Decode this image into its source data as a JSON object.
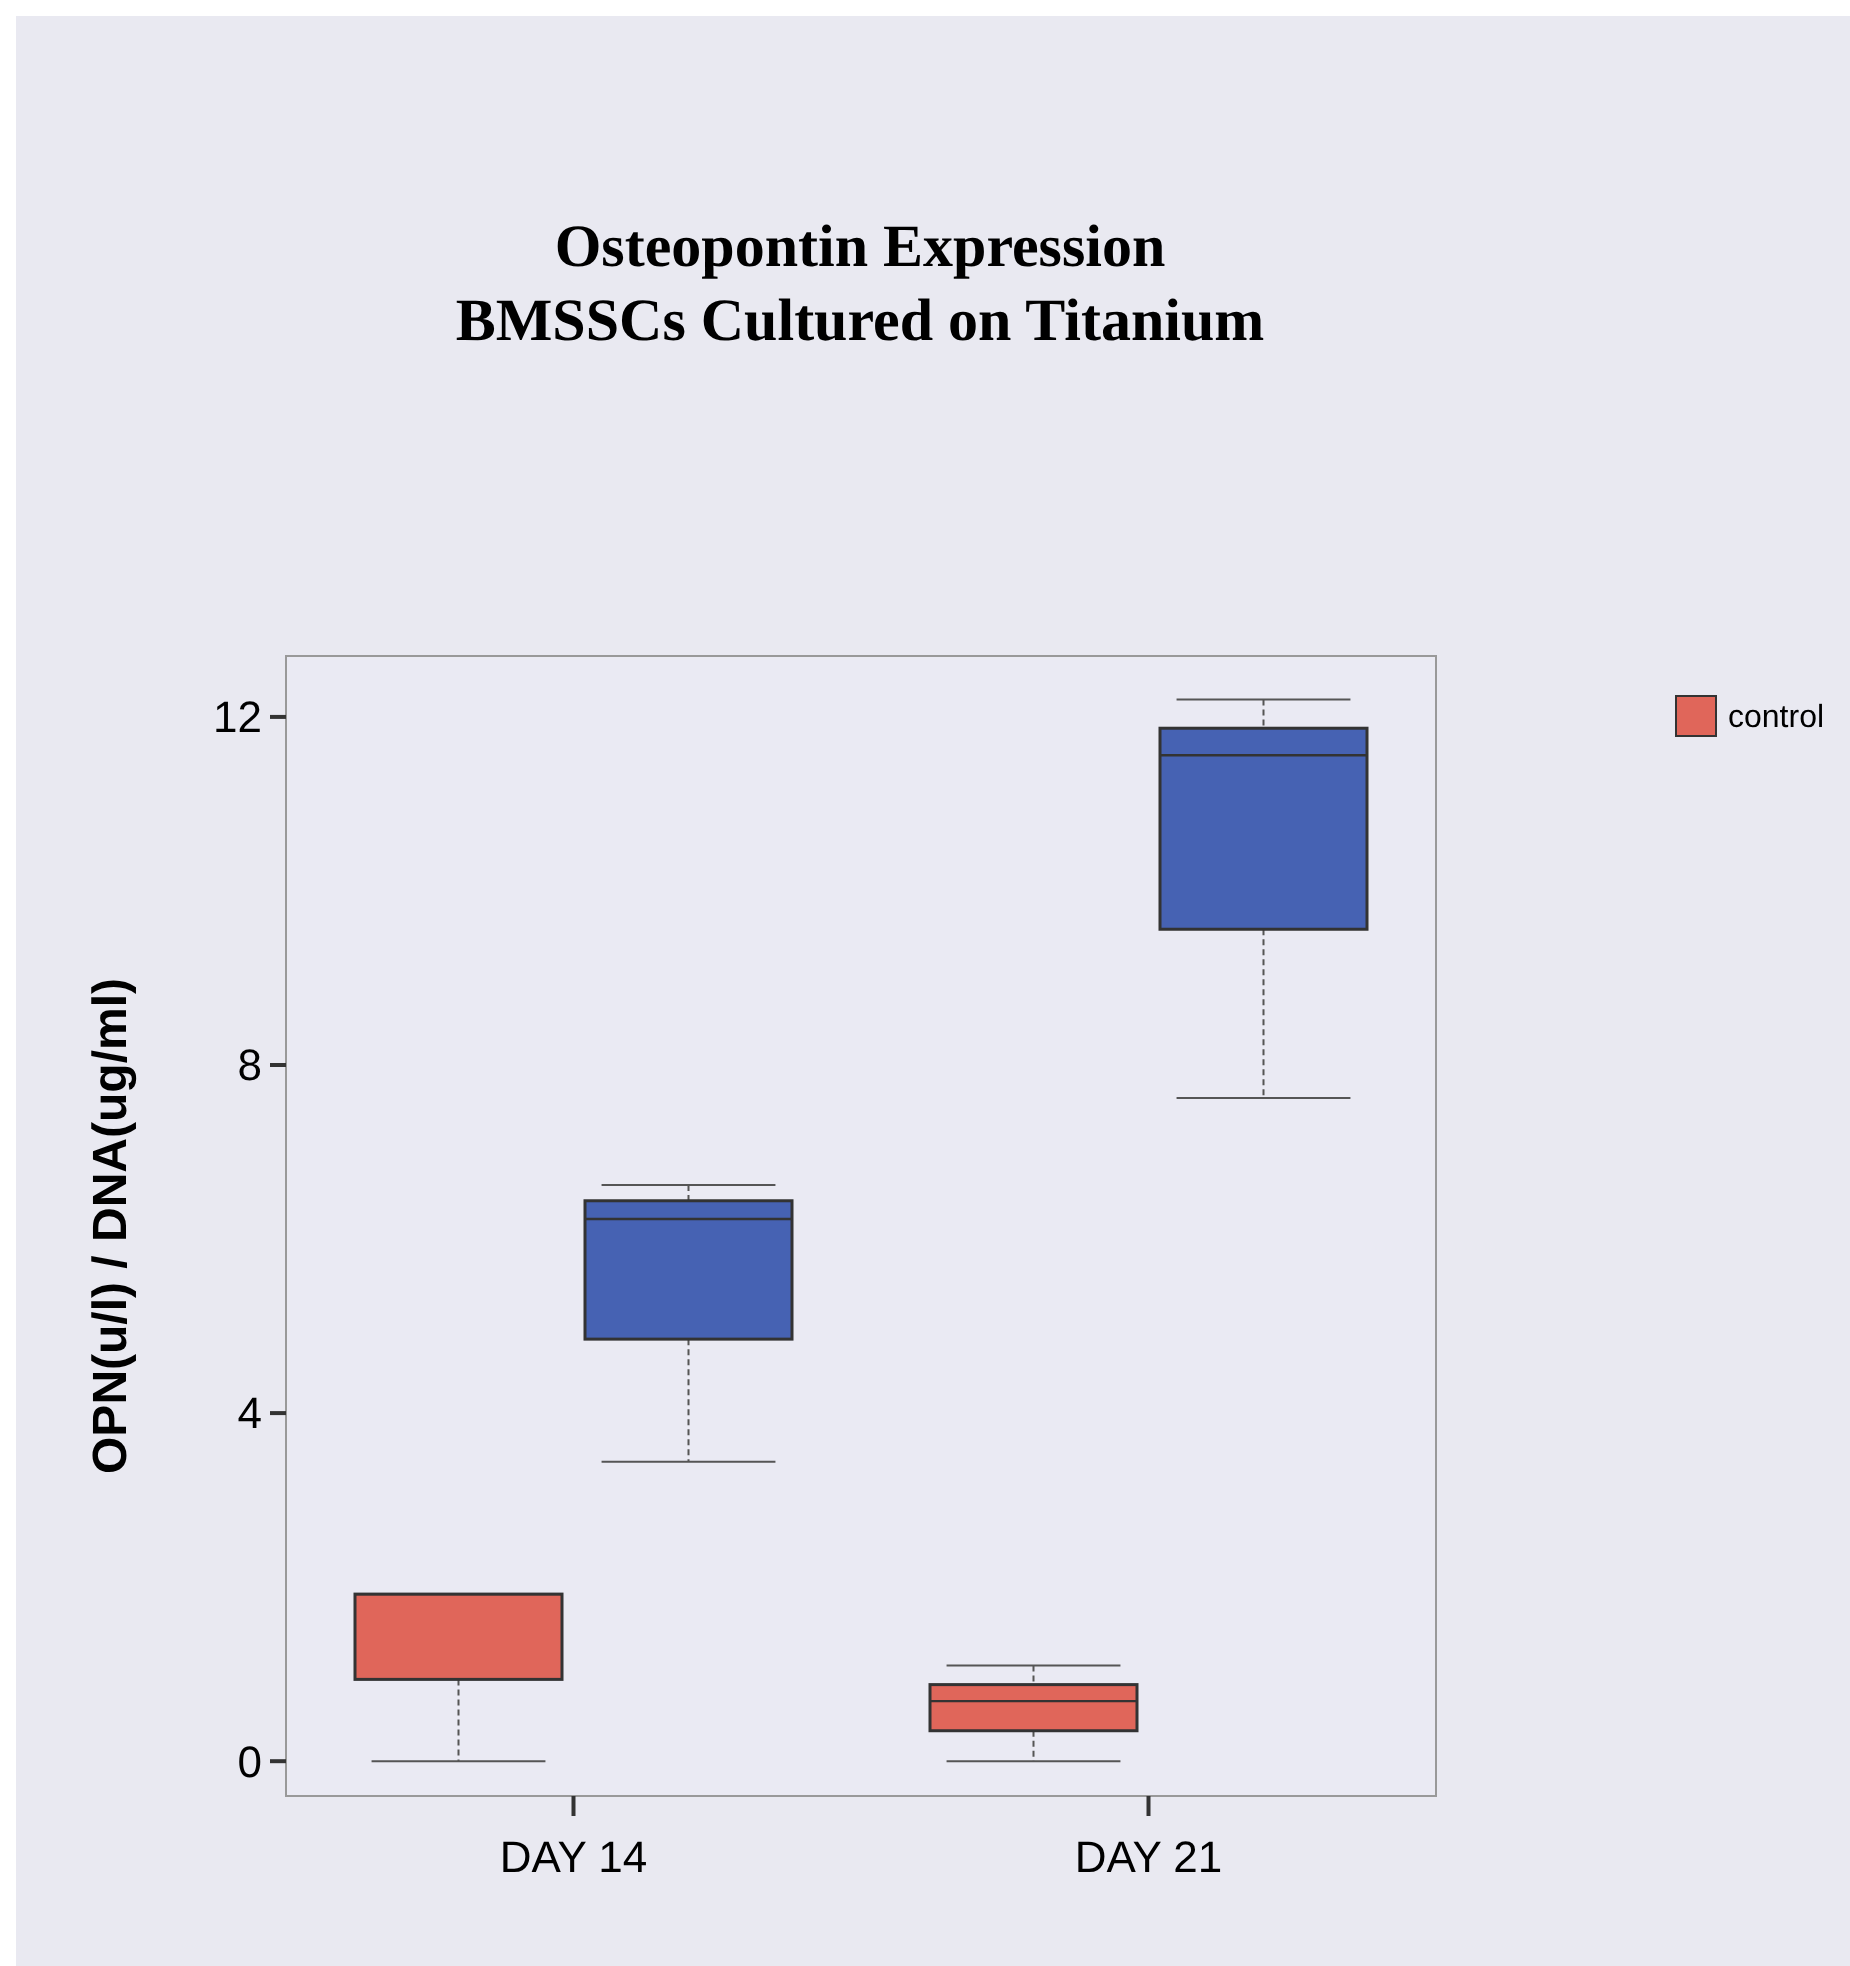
{
  "chart_data": {
    "type": "box",
    "title": "Osteopontin Expression\nBMSSCs Cultured on Titanium",
    "ylabel": "OPN(u/l) / DNA(ug/ml)",
    "categories": [
      "DAY 14",
      "DAY 21"
    ],
    "ylim": [
      -0.4,
      12.7
    ],
    "yticks": [
      0,
      4,
      8,
      12
    ],
    "legend": "right",
    "grid": false,
    "series": [
      {
        "name": "control",
        "color": "#e0665a",
        "boxes": [
          {
            "low": 0,
            "q1": 0.94,
            "median": 1.92,
            "q3": 1.92,
            "high": 1.92
          },
          {
            "low": 0,
            "q1": 0.35,
            "median": 0.69,
            "q3": 0.88,
            "high": 1.1
          }
        ]
      },
      {
        "color": "#4662b3",
        "boxes": [
          {
            "low": 3.44,
            "q1": 4.85,
            "median": 6.23,
            "q3": 6.44,
            "high": 6.62
          },
          {
            "low": 7.62,
            "q1": 9.56,
            "median": 11.56,
            "q3": 11.87,
            "high": 12.2
          }
        ]
      }
    ]
  }
}
